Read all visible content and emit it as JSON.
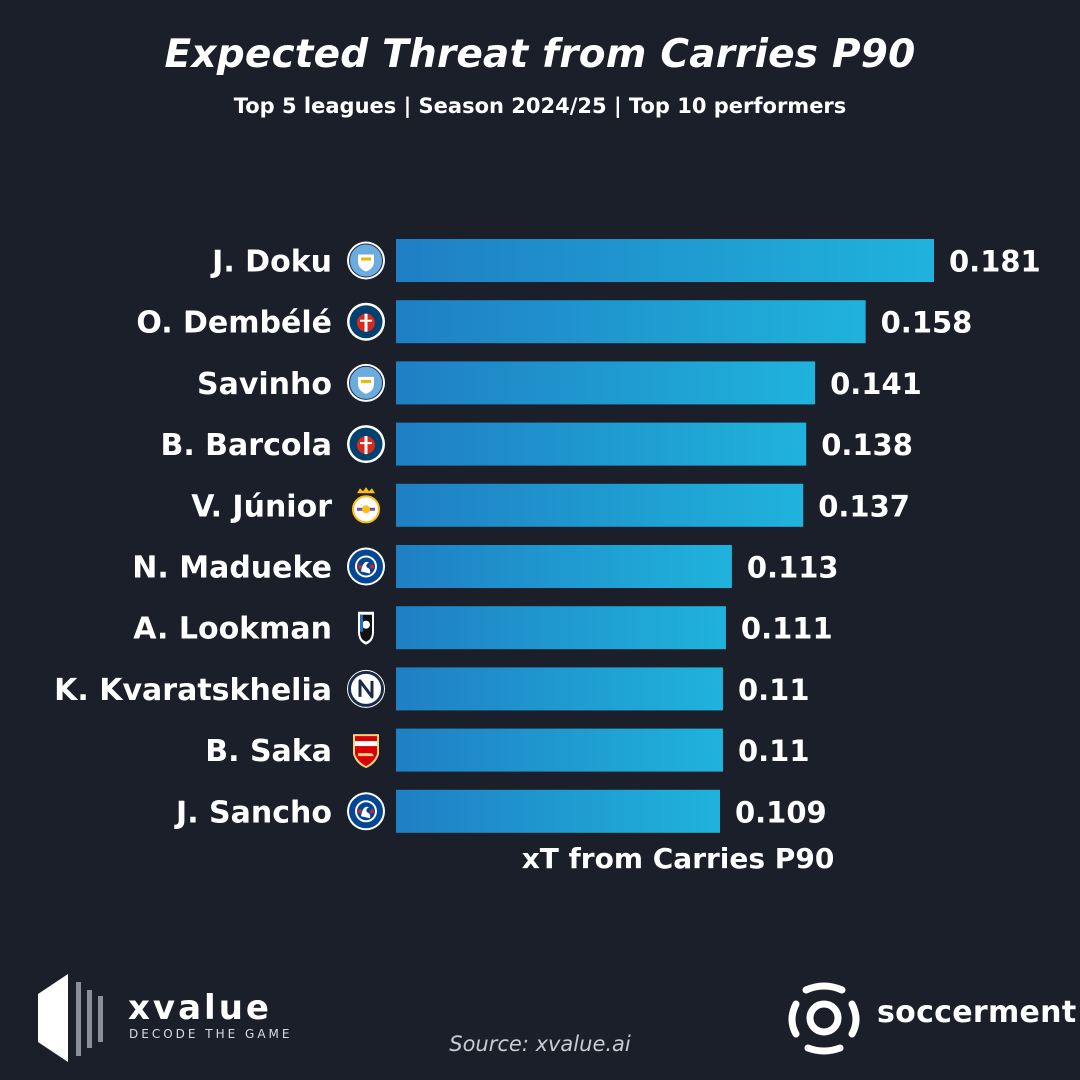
{
  "header": {
    "title": "Expected Threat from Carries P90",
    "subtitle": "Top 5 leagues | Season 2024/25 | Top 10 performers"
  },
  "chart_data": {
    "type": "bar",
    "orientation": "horizontal",
    "title": "Expected Threat from Carries P90",
    "subtitle": "Top 5 leagues | Season 2024/25 | Top 10 performers",
    "xlabel": "xT from Carries P90",
    "ylabel": "",
    "xlim": [
      0,
      0.181
    ],
    "grid": false,
    "categories": [
      "J. Doku",
      "O. Dembélé",
      "Savinho",
      "B. Barcola",
      "V. Júnior",
      "N. Madueke",
      "A. Lookman",
      "K. Kvaratskhelia",
      "B. Saka",
      "J. Sancho"
    ],
    "values": [
      0.181,
      0.158,
      0.141,
      0.138,
      0.137,
      0.113,
      0.111,
      0.11,
      0.11,
      0.109
    ],
    "value_labels": [
      "0.181",
      "0.158",
      "0.141",
      "0.138",
      "0.137",
      "0.113",
      "0.111",
      "0.11",
      "0.11",
      "0.109"
    ],
    "club_badges": [
      "manchester-city-badge-icon",
      "psg-badge-icon",
      "manchester-city-badge-icon",
      "psg-badge-icon",
      "real-madrid-badge-icon",
      "chelsea-badge-icon",
      "atalanta-badge-icon",
      "napoli-badge-icon",
      "arsenal-badge-icon",
      "chelsea-badge-icon"
    ],
    "bar_color_start": "#1f7fc4",
    "bar_color_end": "#1fb3dc"
  },
  "colors": {
    "background": "#1b1f2a",
    "text": "#ffffff",
    "city_blue": "#6cabdd",
    "psg_navy": "#004170",
    "psg_red": "#da291c",
    "chelsea_blue": "#034694",
    "arsenal_red": "#db0007",
    "napoli_blue": "#12a0d7",
    "madrid_gold": "#febe10"
  },
  "footer": {
    "brand_name": "xvalue",
    "brand_tagline": "DECODE THE GAME",
    "source": "Source: xvalue.ai",
    "partner": "soccerment",
    "brand_icon": "xvalue-logo-icon",
    "partner_icon": "soccerment-logo-icon"
  }
}
